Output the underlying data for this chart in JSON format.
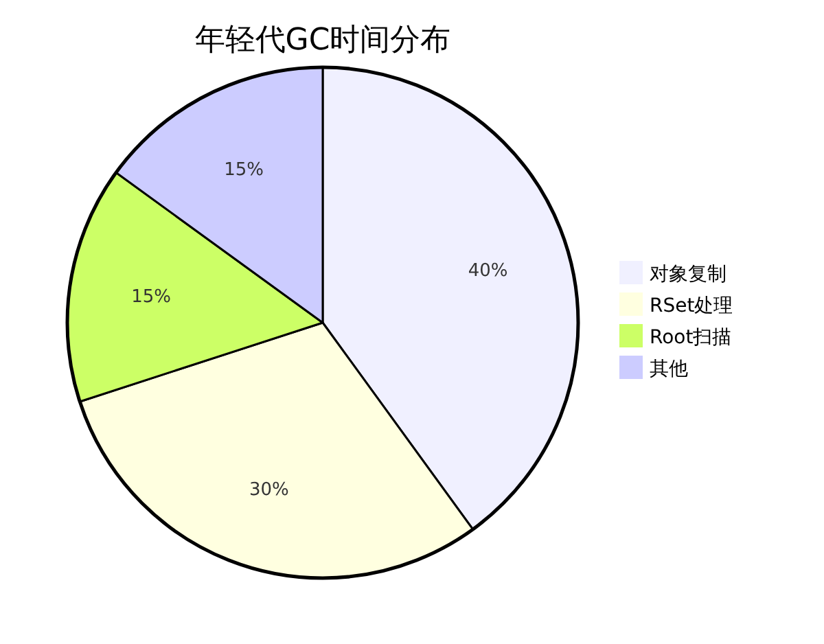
{
  "chart_data": {
    "type": "pie",
    "title": "年轻代GC时间分布",
    "categories": [
      "对象复制",
      "RSet处理",
      "Root扫描",
      "其他"
    ],
    "values": [
      40,
      30,
      15,
      15
    ],
    "colors": [
      "#f0f0ff",
      "#ffffe0",
      "#ccff66",
      "#ccccff"
    ],
    "value_labels": [
      "40%",
      "30%",
      "15%",
      "15%"
    ],
    "legend": "right"
  }
}
